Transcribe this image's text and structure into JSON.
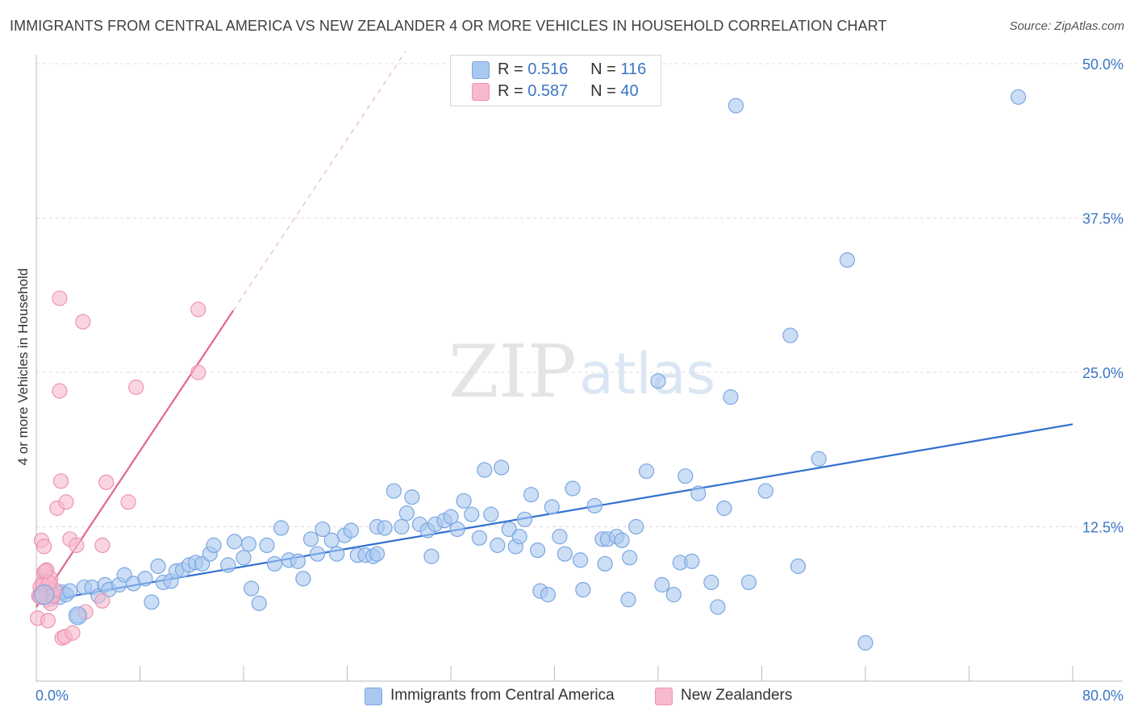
{
  "header": {
    "title": "IMMIGRANTS FROM CENTRAL AMERICA VS NEW ZEALANDER 4 OR MORE VEHICLES IN HOUSEHOLD CORRELATION CHART",
    "source": "Source: ZipAtlas.com"
  },
  "watermark": {
    "zip": "ZIP",
    "atlas": "atlas"
  },
  "legend": {
    "r_label": "R =",
    "n_label": "N =",
    "series": [
      {
        "r": "0.516",
        "n": "116"
      },
      {
        "r": "0.587",
        "n": "40"
      }
    ]
  },
  "bottom_legend": [
    "Immigrants from Central America",
    "New Zealanders"
  ],
  "colors": {
    "blue_fill": "#a9c8f0",
    "blue_stroke": "#7aa6e0",
    "blue_line": "#2f6fd0",
    "pink_fill": "#f7b9cc",
    "pink_stroke": "#ee94b1",
    "pink_line": "#e0678f",
    "tick_label": "#3b76c4",
    "grid": "#dcdcdc"
  },
  "chart_data": {
    "type": "scatter",
    "title": "IMMIGRANTS FROM CENTRAL AMERICA VS NEW ZEALANDER 4 OR MORE VEHICLES IN HOUSEHOLD CORRELATION CHART",
    "xlabel": "",
    "ylabel": "4 or more Vehicles in Household",
    "xlim": [
      0,
      80
    ],
    "ylim": [
      0,
      50
    ],
    "x_tick_labels": [
      "0.0%",
      "80.0%"
    ],
    "y_ticks": [
      12.5,
      25.0,
      37.5,
      50.0
    ],
    "y_tick_labels": [
      "12.5%",
      "25.0%",
      "37.5%",
      "50.0%"
    ],
    "grid": true,
    "legend_position": "top-center",
    "series": [
      {
        "name": "Immigrants from Central America",
        "r": 0.516,
        "n": 116,
        "color": "#a9c8f0",
        "trend": {
          "x": [
            0,
            80
          ],
          "y": [
            6.4,
            20.8
          ]
        },
        "points": [
          [
            0.3,
            6.8
          ],
          [
            0.5,
            7.3
          ],
          [
            0.7,
            7.1
          ],
          [
            0.9,
            6.9
          ],
          [
            1.1,
            7.4
          ],
          [
            1.2,
            6.7
          ],
          [
            1.4,
            7.0
          ],
          [
            1.6,
            7.2
          ],
          [
            1.8,
            6.8
          ],
          [
            2.0,
            7.2
          ],
          [
            2.3,
            7.0
          ],
          [
            2.6,
            7.3
          ],
          [
            3.2,
            5.3
          ],
          [
            3.7,
            7.6
          ],
          [
            4.3,
            7.6
          ],
          [
            4.8,
            6.9
          ],
          [
            5.3,
            7.8
          ],
          [
            5.6,
            7.4
          ],
          [
            6.4,
            7.8
          ],
          [
            6.8,
            8.6
          ],
          [
            7.5,
            7.9
          ],
          [
            8.4,
            8.3
          ],
          [
            8.9,
            6.4
          ],
          [
            9.4,
            9.3
          ],
          [
            9.8,
            8.0
          ],
          [
            10.4,
            8.1
          ],
          [
            10.8,
            8.9
          ],
          [
            11.3,
            9.0
          ],
          [
            11.8,
            9.4
          ],
          [
            12.3,
            9.6
          ],
          [
            12.8,
            9.5
          ],
          [
            13.4,
            10.3
          ],
          [
            13.7,
            11.0
          ],
          [
            14.8,
            9.4
          ],
          [
            15.3,
            11.3
          ],
          [
            16.0,
            10.0
          ],
          [
            16.4,
            11.1
          ],
          [
            16.6,
            7.5
          ],
          [
            17.2,
            6.3
          ],
          [
            17.8,
            11.0
          ],
          [
            18.4,
            9.5
          ],
          [
            18.9,
            12.4
          ],
          [
            19.5,
            9.8
          ],
          [
            20.2,
            9.7
          ],
          [
            20.6,
            8.3
          ],
          [
            21.2,
            11.5
          ],
          [
            21.7,
            10.3
          ],
          [
            22.1,
            12.3
          ],
          [
            22.8,
            11.4
          ],
          [
            23.2,
            10.3
          ],
          [
            23.8,
            11.8
          ],
          [
            24.3,
            12.2
          ],
          [
            24.8,
            10.2
          ],
          [
            25.4,
            10.2
          ],
          [
            26.0,
            10.1
          ],
          [
            26.3,
            12.5
          ],
          [
            26.9,
            12.4
          ],
          [
            26.3,
            10.3
          ],
          [
            27.6,
            15.4
          ],
          [
            28.2,
            12.5
          ],
          [
            28.6,
            13.6
          ],
          [
            29.0,
            14.9
          ],
          [
            29.6,
            12.7
          ],
          [
            30.2,
            12.2
          ],
          [
            30.5,
            10.1
          ],
          [
            30.8,
            12.7
          ],
          [
            31.5,
            13.0
          ],
          [
            32.0,
            13.3
          ],
          [
            32.5,
            12.3
          ],
          [
            33.0,
            14.6
          ],
          [
            33.6,
            13.5
          ],
          [
            34.2,
            11.6
          ],
          [
            34.6,
            17.1
          ],
          [
            35.1,
            13.5
          ],
          [
            35.6,
            11.0
          ],
          [
            35.9,
            17.3
          ],
          [
            36.5,
            12.3
          ],
          [
            37.0,
            10.9
          ],
          [
            37.3,
            11.7
          ],
          [
            37.7,
            13.1
          ],
          [
            38.2,
            15.1
          ],
          [
            38.7,
            10.6
          ],
          [
            38.9,
            7.3
          ],
          [
            39.5,
            7.0
          ],
          [
            39.8,
            14.1
          ],
          [
            40.4,
            11.7
          ],
          [
            40.8,
            10.3
          ],
          [
            41.4,
            15.6
          ],
          [
            42.0,
            9.8
          ],
          [
            42.2,
            7.4
          ],
          [
            43.1,
            14.2
          ],
          [
            43.7,
            11.5
          ],
          [
            43.9,
            9.5
          ],
          [
            44.1,
            11.5
          ],
          [
            44.8,
            11.7
          ],
          [
            45.2,
            11.4
          ],
          [
            45.8,
            10.0
          ],
          [
            46.3,
            12.5
          ],
          [
            47.1,
            17.0
          ],
          [
            48.0,
            24.3
          ],
          [
            48.3,
            7.8
          ],
          [
            49.2,
            7.0
          ],
          [
            49.7,
            9.6
          ],
          [
            50.1,
            16.6
          ],
          [
            50.6,
            9.7
          ],
          [
            51.1,
            15.2
          ],
          [
            52.1,
            8.0
          ],
          [
            52.6,
            6.0
          ],
          [
            53.1,
            14.0
          ],
          [
            53.6,
            23.0
          ],
          [
            55.0,
            8.0
          ],
          [
            56.3,
            15.4
          ],
          [
            58.2,
            28.0
          ],
          [
            58.8,
            9.3
          ],
          [
            60.4,
            18.0
          ],
          [
            62.6,
            34.1
          ],
          [
            64.0,
            3.1
          ],
          [
            75.8,
            47.3
          ],
          [
            54.0,
            46.6
          ],
          [
            45.7,
            6.6
          ]
        ]
      },
      {
        "name": "New Zealanders",
        "r": 0.587,
        "n": 40,
        "color": "#f7b9cc",
        "trend": {
          "x": [
            0,
            15.2
          ],
          "y": [
            6.0,
            30.0
          ]
        },
        "trend_dashed": {
          "x": [
            15.2,
            28.5
          ],
          "y": [
            30.0,
            51.0
          ]
        },
        "points": [
          [
            0.1,
            5.1
          ],
          [
            0.2,
            6.9
          ],
          [
            0.3,
            7.6
          ],
          [
            0.4,
            7.2
          ],
          [
            0.5,
            8.0
          ],
          [
            0.6,
            8.8
          ],
          [
            0.7,
            7.5
          ],
          [
            0.8,
            9.0
          ],
          [
            0.9,
            6.6
          ],
          [
            1.0,
            7.9
          ],
          [
            1.1,
            8.3
          ],
          [
            0.4,
            11.4
          ],
          [
            0.6,
            10.9
          ],
          [
            0.9,
            4.9
          ],
          [
            1.1,
            6.3
          ],
          [
            1.3,
            6.9
          ],
          [
            1.6,
            14.0
          ],
          [
            1.8,
            31.0
          ],
          [
            1.8,
            23.5
          ],
          [
            1.9,
            16.2
          ],
          [
            2.0,
            3.5
          ],
          [
            2.2,
            3.6
          ],
          [
            2.3,
            14.5
          ],
          [
            2.6,
            11.5
          ],
          [
            2.8,
            3.9
          ],
          [
            3.1,
            11.0
          ],
          [
            3.6,
            29.1
          ],
          [
            3.8,
            5.6
          ],
          [
            5.1,
            11.0
          ],
          [
            5.1,
            6.5
          ],
          [
            5.4,
            16.1
          ],
          [
            7.1,
            14.5
          ],
          [
            7.7,
            23.8
          ],
          [
            12.5,
            30.1
          ],
          [
            12.5,
            25.0
          ],
          [
            0.5,
            7.8
          ],
          [
            0.3,
            6.8
          ],
          [
            1.4,
            7.4
          ],
          [
            1.0,
            8.0
          ],
          [
            0.7,
            8.9
          ]
        ]
      }
    ]
  }
}
